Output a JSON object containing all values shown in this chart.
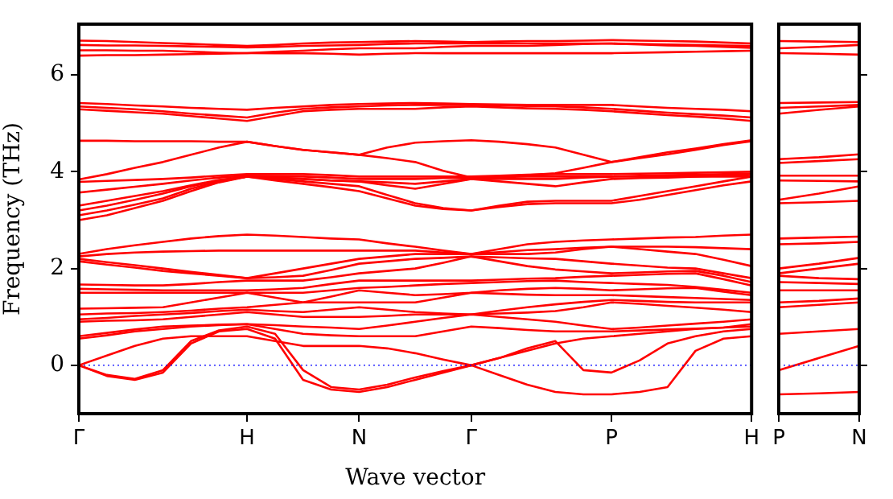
{
  "chart_data": [
    {
      "type": "line",
      "xlabel": "Wave vector",
      "ylabel": "Frequency (THz)",
      "ylim": [
        -1,
        7.05
      ],
      "yticks": [
        0,
        2,
        4,
        6
      ],
      "categories": [
        "Γ",
        null,
        null,
        null,
        null,
        null,
        "H",
        null,
        null,
        null,
        "N",
        null,
        null,
        null,
        "Γ",
        null,
        null,
        null,
        null,
        "P",
        null,
        null,
        null,
        null,
        "H"
      ],
      "grid": false,
      "legend": false,
      "marker": "none",
      "line_style": "solid",
      "ref_lines": [
        {
          "axis": "y",
          "value": 0,
          "color": "#0000ff",
          "line_style": "dotted"
        }
      ],
      "series": [
        {
          "color": "#ff0000",
          "values": [
            0,
            -0.22,
            -0.3,
            -0.15,
            0.45,
            0.7,
            0.75,
            0.55,
            -0.3,
            -0.5,
            -0.55,
            -0.45,
            -0.3,
            -0.15,
            0,
            -0.2,
            -0.4,
            -0.55,
            -0.6,
            -0.6,
            -0.55,
            -0.45,
            0.3,
            0.55,
            0.6
          ]
        },
        {
          "color": "#ff0000",
          "values": [
            0,
            -0.2,
            -0.28,
            -0.1,
            0.5,
            0.72,
            0.8,
            0.65,
            -0.1,
            -0.45,
            -0.5,
            -0.4,
            -0.25,
            -0.12,
            0,
            0.15,
            0.35,
            0.5,
            -0.1,
            -0.15,
            0.1,
            0.45,
            0.6,
            0.7,
            0.75
          ]
        },
        {
          "color": "#ff0000",
          "values": [
            0,
            0.2,
            0.4,
            0.55,
            0.6,
            0.6,
            0.6,
            0.5,
            0.4,
            0.4,
            0.4,
            0.35,
            0.25,
            0.12,
            0,
            0.15,
            0.3,
            0.45,
            0.55,
            0.6,
            0.65,
            0.7,
            0.75,
            0.78,
            0.85
          ]
        },
        {
          "color": "#ff0000",
          "values": [
            0.55,
            0.62,
            0.7,
            0.75,
            0.8,
            0.83,
            0.85,
            0.75,
            0.65,
            0.62,
            0.6,
            0.6,
            0.6,
            0.7,
            0.8,
            0.77,
            0.73,
            0.7,
            0.7,
            0.7,
            0.72,
            0.74,
            0.76,
            0.78,
            0.8
          ]
        },
        {
          "color": "#ff0000",
          "values": [
            0.6,
            0.67,
            0.74,
            0.8,
            0.82,
            0.84,
            0.85,
            0.83,
            0.8,
            0.78,
            0.75,
            0.82,
            0.9,
            0.98,
            1.05,
            1.0,
            0.95,
            0.9,
            0.82,
            0.75,
            0.78,
            0.82,
            0.86,
            0.9,
            0.95
          ]
        },
        {
          "color": "#ff0000",
          "values": [
            0.9,
            0.92,
            0.93,
            0.95,
            1.0,
            1.05,
            1.1,
            1.05,
            1.0,
            1.0,
            1.0,
            1.02,
            1.05,
            1.05,
            1.05,
            1.07,
            1.09,
            1.12,
            1.2,
            1.3,
            1.27,
            1.23,
            1.19,
            1.15,
            1.1
          ]
        },
        {
          "color": "#ff0000",
          "values": [
            0.95,
            0.98,
            1.02,
            1.05,
            1.08,
            1.12,
            1.15,
            1.12,
            1.1,
            1.15,
            1.2,
            1.15,
            1.1,
            1.07,
            1.05,
            1.13,
            1.2,
            1.26,
            1.31,
            1.35,
            1.33,
            1.31,
            1.3,
            1.3,
            1.3
          ]
        },
        {
          "color": "#ff0000",
          "values": [
            1.05,
            1.07,
            1.08,
            1.1,
            1.13,
            1.17,
            1.2,
            1.25,
            1.3,
            1.3,
            1.3,
            1.3,
            1.3,
            1.4,
            1.5,
            1.48,
            1.46,
            1.45,
            1.45,
            1.45,
            1.43,
            1.41,
            1.39,
            1.37,
            1.35
          ]
        },
        {
          "color": "#ff0000",
          "values": [
            1.17,
            1.18,
            1.19,
            1.2,
            1.3,
            1.4,
            1.5,
            1.4,
            1.3,
            1.42,
            1.55,
            1.5,
            1.45,
            1.47,
            1.5,
            1.55,
            1.58,
            1.6,
            1.58,
            1.55,
            1.57,
            1.59,
            1.6,
            1.52,
            1.45
          ]
        },
        {
          "color": "#ff0000",
          "values": [
            1.5,
            1.5,
            1.5,
            1.5,
            1.5,
            1.5,
            1.5,
            1.5,
            1.5,
            1.55,
            1.6,
            1.62,
            1.65,
            1.68,
            1.7,
            1.72,
            1.74,
            1.75,
            1.72,
            1.7,
            1.68,
            1.66,
            1.62,
            1.56,
            1.5
          ]
        },
        {
          "color": "#ff0000",
          "values": [
            1.58,
            1.57,
            1.56,
            1.55,
            1.55,
            1.55,
            1.55,
            1.57,
            1.6,
            1.68,
            1.75,
            1.75,
            1.75,
            1.75,
            1.75,
            1.77,
            1.79,
            1.8,
            1.83,
            1.85,
            1.87,
            1.89,
            1.9,
            1.78,
            1.65
          ]
        },
        {
          "color": "#ff0000",
          "values": [
            1.67,
            1.66,
            1.65,
            1.65,
            1.68,
            1.72,
            1.75,
            1.75,
            1.75,
            1.82,
            1.9,
            1.95,
            2.0,
            2.12,
            2.25,
            2.15,
            2.05,
            1.98,
            1.94,
            1.9,
            1.92,
            1.94,
            1.95,
            1.85,
            1.72
          ]
        },
        {
          "color": "#ff0000",
          "values": [
            2.15,
            2.08,
            2.02,
            1.95,
            1.9,
            1.85,
            1.8,
            1.82,
            1.85,
            1.97,
            2.1,
            2.15,
            2.2,
            2.22,
            2.25,
            2.23,
            2.21,
            2.2,
            2.15,
            2.1,
            2.06,
            2.02,
            2.0,
            1.9,
            1.8
          ]
        },
        {
          "color": "#ff0000",
          "values": [
            2.2,
            2.13,
            2.07,
            2.0,
            1.93,
            1.87,
            1.8,
            1.9,
            2.0,
            2.1,
            2.2,
            2.25,
            2.3,
            2.3,
            2.3,
            2.3,
            2.3,
            2.33,
            2.4,
            2.45,
            2.4,
            2.35,
            2.3,
            2.18,
            2.05
          ]
        },
        {
          "color": "#ff0000",
          "values": [
            2.25,
            2.3,
            2.33,
            2.35,
            2.36,
            2.37,
            2.37,
            2.37,
            2.37,
            2.37,
            2.37,
            2.37,
            2.37,
            2.33,
            2.3,
            2.34,
            2.38,
            2.4,
            2.43,
            2.45,
            2.45,
            2.45,
            2.44,
            2.42,
            2.4
          ]
        },
        {
          "color": "#ff0000",
          "values": [
            2.3,
            2.4,
            2.48,
            2.55,
            2.62,
            2.67,
            2.7,
            2.68,
            2.65,
            2.62,
            2.6,
            2.52,
            2.45,
            2.37,
            2.3,
            2.4,
            2.5,
            2.55,
            2.58,
            2.6,
            2.62,
            2.64,
            2.65,
            2.68,
            2.7
          ]
        },
        {
          "color": "#ff0000",
          "values": [
            3.0,
            3.1,
            3.25,
            3.4,
            3.6,
            3.78,
            3.9,
            3.82,
            3.75,
            3.68,
            3.6,
            3.45,
            3.3,
            3.23,
            3.2,
            3.27,
            3.33,
            3.35,
            3.35,
            3.35,
            3.42,
            3.52,
            3.62,
            3.72,
            3.8
          ]
        },
        {
          "color": "#ff0000",
          "values": [
            3.1,
            3.2,
            3.32,
            3.45,
            3.65,
            3.8,
            3.9,
            3.85,
            3.8,
            3.75,
            3.7,
            3.52,
            3.35,
            3.25,
            3.2,
            3.3,
            3.38,
            3.4,
            3.4,
            3.4,
            3.5,
            3.6,
            3.7,
            3.8,
            3.9
          ]
        },
        {
          "color": "#ff0000",
          "values": [
            3.2,
            3.3,
            3.42,
            3.55,
            3.7,
            3.82,
            3.9,
            3.88,
            3.85,
            3.82,
            3.8,
            3.72,
            3.65,
            3.75,
            3.85,
            3.8,
            3.75,
            3.7,
            3.78,
            3.85,
            3.87,
            3.88,
            3.9,
            3.9,
            3.9
          ]
        },
        {
          "color": "#ff0000",
          "values": [
            3.3,
            3.4,
            3.5,
            3.6,
            3.72,
            3.83,
            3.9,
            3.88,
            3.85,
            3.82,
            3.8,
            3.78,
            3.75,
            3.8,
            3.85,
            3.85,
            3.85,
            3.85,
            3.88,
            3.9,
            3.9,
            3.9,
            3.9,
            3.92,
            3.95
          ]
        },
        {
          "color": "#ff0000",
          "values": [
            3.57,
            3.63,
            3.69,
            3.75,
            3.82,
            3.88,
            3.92,
            3.91,
            3.9,
            3.88,
            3.85,
            3.85,
            3.85,
            3.87,
            3.88,
            3.89,
            3.9,
            3.9,
            3.9,
            3.9,
            3.92,
            3.93,
            3.94,
            3.95,
            3.96
          ]
        },
        {
          "color": "#ff0000",
          "values": [
            3.79,
            3.81,
            3.83,
            3.85,
            3.88,
            3.92,
            3.95,
            3.95,
            3.95,
            3.93,
            3.9,
            3.9,
            3.9,
            3.9,
            3.9,
            3.92,
            3.94,
            3.95,
            3.95,
            3.95,
            3.96,
            3.97,
            3.98,
            3.99,
            4.0
          ]
        },
        {
          "color": "#ff0000",
          "values": [
            3.84,
            3.95,
            4.08,
            4.2,
            4.35,
            4.5,
            4.62,
            4.53,
            4.45,
            4.4,
            4.35,
            4.28,
            4.2,
            4.02,
            3.88,
            3.9,
            3.93,
            3.97,
            4.08,
            4.2,
            4.3,
            4.4,
            4.48,
            4.57,
            4.65
          ]
        },
        {
          "color": "#ff0000",
          "values": [
            4.64,
            4.64,
            4.63,
            4.63,
            4.63,
            4.62,
            4.62,
            4.53,
            4.45,
            4.4,
            4.35,
            4.5,
            4.6,
            4.63,
            4.65,
            4.62,
            4.57,
            4.5,
            4.35,
            4.2,
            4.28,
            4.36,
            4.45,
            4.55,
            4.63
          ]
        },
        {
          "color": "#ff0000",
          "values": [
            5.29,
            5.26,
            5.23,
            5.2,
            5.15,
            5.1,
            5.05,
            5.15,
            5.25,
            5.28,
            5.3,
            5.3,
            5.3,
            5.33,
            5.35,
            5.33,
            5.31,
            5.3,
            5.28,
            5.25,
            5.21,
            5.17,
            5.14,
            5.1,
            5.05
          ]
        },
        {
          "color": "#ff0000",
          "values": [
            5.35,
            5.32,
            5.29,
            5.25,
            5.2,
            5.16,
            5.12,
            5.22,
            5.3,
            5.33,
            5.35,
            5.37,
            5.38,
            5.38,
            5.38,
            5.37,
            5.36,
            5.35,
            5.33,
            5.3,
            5.26,
            5.22,
            5.19,
            5.16,
            5.12
          ]
        },
        {
          "color": "#ff0000",
          "values": [
            5.42,
            5.4,
            5.37,
            5.35,
            5.32,
            5.3,
            5.28,
            5.32,
            5.35,
            5.38,
            5.4,
            5.41,
            5.42,
            5.41,
            5.4,
            5.39,
            5.38,
            5.38,
            5.38,
            5.38,
            5.35,
            5.32,
            5.3,
            5.28,
            5.25
          ]
        },
        {
          "color": "#ff0000",
          "values": [
            6.4,
            6.41,
            6.41,
            6.42,
            6.43,
            6.44,
            6.45,
            6.45,
            6.45,
            6.44,
            6.42,
            6.44,
            6.45,
            6.45,
            6.45,
            6.45,
            6.45,
            6.45,
            6.45,
            6.45,
            6.46,
            6.47,
            6.48,
            6.49,
            6.5
          ]
        },
        {
          "color": "#ff0000",
          "values": [
            6.51,
            6.51,
            6.5,
            6.5,
            6.48,
            6.46,
            6.45,
            6.48,
            6.5,
            6.53,
            6.55,
            6.55,
            6.55,
            6.58,
            6.6,
            6.6,
            6.6,
            6.62,
            6.64,
            6.65,
            6.63,
            6.61,
            6.6,
            6.58,
            6.56
          ]
        },
        {
          "color": "#ff0000",
          "values": [
            6.62,
            6.61,
            6.61,
            6.6,
            6.59,
            6.58,
            6.57,
            6.58,
            6.6,
            6.61,
            6.62,
            6.64,
            6.65,
            6.65,
            6.65,
            6.65,
            6.65,
            6.65,
            6.65,
            6.65,
            6.64,
            6.63,
            6.62,
            6.61,
            6.6
          ]
        },
        {
          "color": "#ff0000",
          "values": [
            6.71,
            6.7,
            6.68,
            6.66,
            6.64,
            6.62,
            6.6,
            6.62,
            6.65,
            6.67,
            6.68,
            6.69,
            6.7,
            6.69,
            6.68,
            6.69,
            6.7,
            6.7,
            6.71,
            6.72,
            6.71,
            6.7,
            6.69,
            6.67,
            6.65
          ]
        }
      ]
    },
    {
      "type": "line",
      "ylim": [
        -1,
        7.05
      ],
      "yticks": [
        0,
        2,
        4,
        6
      ],
      "tick_labels": "x",
      "categories": [
        "P",
        null,
        "N"
      ],
      "grid": false,
      "legend": false,
      "marker": "none",
      "line_style": "solid",
      "ref_lines": [
        {
          "axis": "y",
          "value": 0,
          "color": "#0000ff",
          "line_style": "dotted"
        }
      ],
      "series": [
        {
          "color": "#ff0000",
          "values": [
            -0.6,
            -0.58,
            -0.55
          ]
        },
        {
          "color": "#ff0000",
          "values": [
            -0.1,
            0.15,
            0.4
          ]
        },
        {
          "color": "#ff0000",
          "values": [
            0.65,
            0.7,
            0.75
          ]
        },
        {
          "color": "#ff0000",
          "values": [
            1.2,
            1.25,
            1.3
          ]
        },
        {
          "color": "#ff0000",
          "values": [
            1.3,
            1.33,
            1.38
          ]
        },
        {
          "color": "#ff0000",
          "values": [
            1.55,
            1.55,
            1.55
          ]
        },
        {
          "color": "#ff0000",
          "values": [
            1.72,
            1.7,
            1.68
          ]
        },
        {
          "color": "#ff0000",
          "values": [
            1.85,
            1.8,
            1.78
          ]
        },
        {
          "color": "#ff0000",
          "values": [
            1.9,
            2.0,
            2.1
          ]
        },
        {
          "color": "#ff0000",
          "values": [
            2.0,
            2.1,
            2.22
          ]
        },
        {
          "color": "#ff0000",
          "values": [
            2.5,
            2.52,
            2.55
          ]
        },
        {
          "color": "#ff0000",
          "values": [
            2.62,
            2.64,
            2.66
          ]
        },
        {
          "color": "#ff0000",
          "values": [
            3.35,
            3.37,
            3.4
          ]
        },
        {
          "color": "#ff0000",
          "values": [
            3.42,
            3.55,
            3.7
          ]
        },
        {
          "color": "#ff0000",
          "values": [
            3.82,
            3.81,
            3.8
          ]
        },
        {
          "color": "#ff0000",
          "values": [
            3.92,
            3.92,
            3.92
          ]
        },
        {
          "color": "#ff0000",
          "values": [
            4.18,
            4.22,
            4.26
          ]
        },
        {
          "color": "#ff0000",
          "values": [
            4.26,
            4.3,
            4.36
          ]
        },
        {
          "color": "#ff0000",
          "values": [
            5.2,
            5.28,
            5.35
          ]
        },
        {
          "color": "#ff0000",
          "values": [
            5.32,
            5.35,
            5.38
          ]
        },
        {
          "color": "#ff0000",
          "values": [
            5.42,
            5.43,
            5.44
          ]
        },
        {
          "color": "#ff0000",
          "values": [
            6.45,
            6.44,
            6.42
          ]
        },
        {
          "color": "#ff0000",
          "values": [
            6.55,
            6.58,
            6.62
          ]
        },
        {
          "color": "#ff0000",
          "values": [
            6.7,
            6.69,
            6.68
          ]
        }
      ]
    }
  ]
}
